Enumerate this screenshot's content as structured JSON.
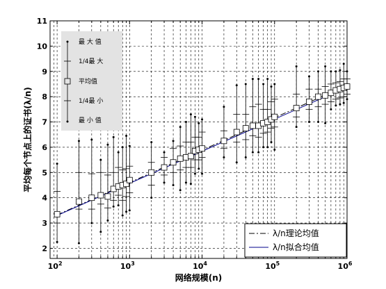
{
  "chart_data": {
    "type": "boxplot-line",
    "xlabel": "网络规模(n)",
    "ylabel": "平均每个节点上的证书(λ/n)",
    "xscale": "log",
    "xlim": [
      80,
      1000000
    ],
    "ylim": [
      1.6,
      11
    ],
    "grid": true,
    "x_ticks": [
      {
        "value": 100,
        "base": "10",
        "exp": "2"
      },
      {
        "value": 1000,
        "base": "10",
        "exp": "3"
      },
      {
        "value": 10000,
        "base": "10",
        "exp": "4"
      },
      {
        "value": 100000,
        "base": "10",
        "exp": "5"
      },
      {
        "value": 1000000,
        "base": "10",
        "exp": "6"
      }
    ],
    "y_ticks": [
      2,
      3,
      4,
      5,
      6,
      7,
      8,
      9,
      10,
      11
    ],
    "box_legend": [
      "最 大 值",
      "1/4最 大",
      "平均值",
      "1/4最 小",
      "最 小 值"
    ],
    "series": [
      {
        "name": "λ/n理论均值",
        "style": "dash-dot",
        "color": "#000000",
        "x": [
          100,
          1000000
        ],
        "y": [
          3.32,
          8.45
        ]
      },
      {
        "name": "λ/n拟合均值",
        "style": "solid",
        "color": "#00008b",
        "x": [
          100,
          1000000
        ],
        "y": [
          3.3,
          8.38
        ]
      }
    ],
    "points": [
      {
        "x": 100,
        "mean": 3.35,
        "min": 2.25,
        "q1": 3.0,
        "q3": 4.25,
        "max": 5.35
      },
      {
        "x": 200,
        "mean": 3.85,
        "min": 2.2,
        "q1": 3.55,
        "q3": 5.0,
        "max": 6.25
      },
      {
        "x": 300,
        "mean": 4.0,
        "min": 3.0,
        "q1": 3.55,
        "q3": 4.95,
        "max": 6.3
      },
      {
        "x": 400,
        "mean": 4.1,
        "min": 2.65,
        "q1": 3.75,
        "q3": 5.0,
        "max": 5.5
      },
      {
        "x": 500,
        "mean": 4.05,
        "min": 3.1,
        "q1": 3.6,
        "q3": 4.9,
        "max": 6.1
      },
      {
        "x": 600,
        "mean": 4.35,
        "min": 3.65,
        "q1": 3.9,
        "q3": 5.0,
        "max": 6.4
      },
      {
        "x": 700,
        "mean": 4.45,
        "min": 3.7,
        "q1": 4.1,
        "q3": 5.2,
        "max": 5.8
      },
      {
        "x": 800,
        "mean": 4.5,
        "min": 3.3,
        "q1": 3.9,
        "q3": 5.1,
        "max": 6.0
      },
      {
        "x": 900,
        "mean": 4.55,
        "min": 3.45,
        "q1": 4.05,
        "q3": 5.15,
        "max": 6.45
      },
      {
        "x": 1000,
        "mean": 4.7,
        "min": 3.5,
        "q1": 4.2,
        "q3": 5.25,
        "max": 6.05
      },
      {
        "x": 2000,
        "mean": 5.0,
        "min": 4.0,
        "q1": 4.5,
        "q3": 5.4,
        "max": 6.2
      },
      {
        "x": 3000,
        "mean": 5.2,
        "min": 4.6,
        "q1": 4.9,
        "q3": 5.6,
        "max": 5.8
      },
      {
        "x": 4000,
        "mean": 5.4,
        "min": 4.5,
        "q1": 5.0,
        "q3": 5.95,
        "max": 6.25
      },
      {
        "x": 5000,
        "mean": 5.55,
        "min": 4.3,
        "q1": 5.1,
        "q3": 6.05,
        "max": 6.8
      },
      {
        "x": 6000,
        "mean": 5.6,
        "min": 4.6,
        "q1": 5.2,
        "q3": 6.2,
        "max": 7.0
      },
      {
        "x": 7000,
        "mean": 5.65,
        "min": 4.55,
        "q1": 5.2,
        "q3": 6.2,
        "max": 7.3
      },
      {
        "x": 8000,
        "mean": 5.85,
        "min": 4.95,
        "q1": 5.5,
        "q3": 6.4,
        "max": 7.2
      },
      {
        "x": 9000,
        "mean": 5.9,
        "min": 5.15,
        "q1": 5.5,
        "q3": 6.4,
        "max": 6.95
      },
      {
        "x": 10000,
        "mean": 5.95,
        "min": 4.95,
        "q1": 5.6,
        "q3": 6.6,
        "max": 7.1
      },
      {
        "x": 20000,
        "mean": 6.25,
        "min": 5.6,
        "q1": 5.95,
        "q3": 6.65,
        "max": 7.6
      },
      {
        "x": 30000,
        "mean": 6.6,
        "min": 5.4,
        "q1": 6.2,
        "q3": 7.3,
        "max": 8.45
      },
      {
        "x": 40000,
        "mean": 6.75,
        "min": 5.6,
        "q1": 6.3,
        "q3": 7.3,
        "max": 8.5
      },
      {
        "x": 50000,
        "mean": 6.85,
        "min": 5.8,
        "q1": 6.45,
        "q3": 7.6,
        "max": 8.7
      },
      {
        "x": 60000,
        "mean": 6.85,
        "min": 5.8,
        "q1": 6.4,
        "q3": 7.7,
        "max": 8.7
      },
      {
        "x": 70000,
        "mean": 6.95,
        "min": 6.0,
        "q1": 6.55,
        "q3": 7.5,
        "max": 8.5
      },
      {
        "x": 80000,
        "mean": 7.0,
        "min": 6.0,
        "q1": 6.6,
        "q3": 7.5,
        "max": 8.7
      },
      {
        "x": 90000,
        "mean": 7.1,
        "min": 6.2,
        "q1": 6.75,
        "q3": 7.8,
        "max": 8.4
      },
      {
        "x": 100000,
        "mean": 7.2,
        "min": 5.9,
        "q1": 6.8,
        "q3": 7.9,
        "max": 8.5
      },
      {
        "x": 200000,
        "mean": 7.55,
        "min": 6.8,
        "q1": 7.2,
        "q3": 8.1,
        "max": 9.2
      },
      {
        "x": 300000,
        "mean": 7.8,
        "min": 7.0,
        "q1": 7.5,
        "q3": 8.3,
        "max": 8.8
      },
      {
        "x": 400000,
        "mean": 8.0,
        "min": 7.0,
        "q1": 7.6,
        "q3": 8.3,
        "max": 9.0
      },
      {
        "x": 500000,
        "mean": 8.05,
        "min": 6.95,
        "q1": 7.7,
        "q3": 8.4,
        "max": 9.2
      },
      {
        "x": 600000,
        "mean": 8.15,
        "min": 7.5,
        "q1": 7.8,
        "q3": 8.5,
        "max": 9.0
      },
      {
        "x": 700000,
        "mean": 8.25,
        "min": 7.65,
        "q1": 7.9,
        "q3": 8.55,
        "max": 9.0
      },
      {
        "x": 800000,
        "mean": 8.3,
        "min": 7.7,
        "q1": 7.95,
        "q3": 8.6,
        "max": 9.05
      },
      {
        "x": 900000,
        "mean": 8.35,
        "min": 7.75,
        "q1": 8.0,
        "q3": 8.7,
        "max": 9.3
      },
      {
        "x": 1000000,
        "mean": 8.4,
        "min": 7.9,
        "q1": 8.1,
        "q3": 8.7,
        "max": 9.0
      }
    ]
  }
}
